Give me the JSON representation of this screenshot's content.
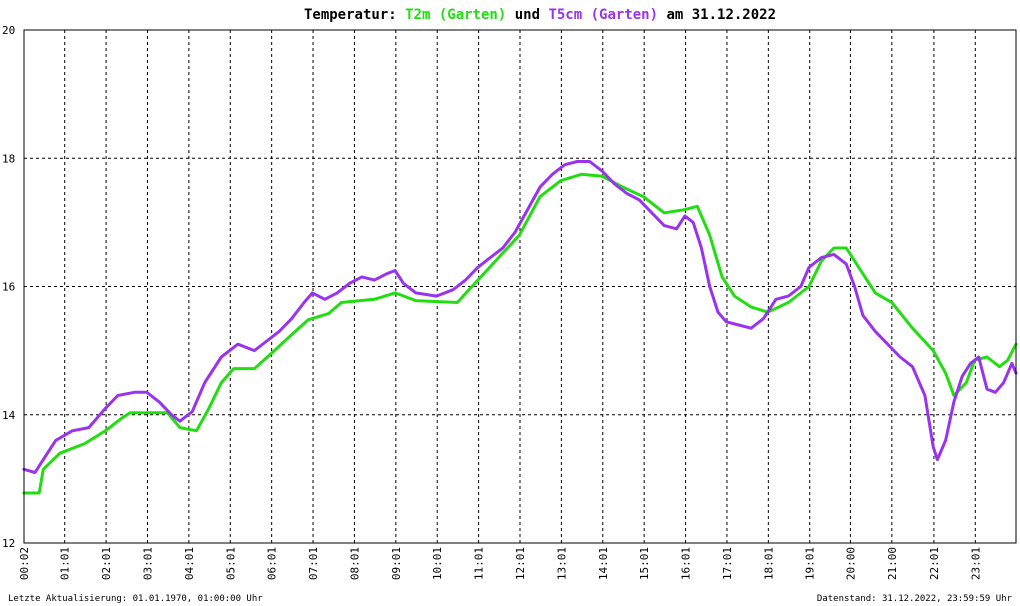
{
  "chart_data": {
    "type": "line",
    "title": {
      "prefix": "Temperatur: ",
      "series1": "T2m (Garten)",
      "middle": " und ",
      "series2": "T5cm (Garten)",
      "suffix": " am 31.12.2022"
    },
    "ylim": [
      12,
      20
    ],
    "yticks": [
      "12",
      "14",
      "16",
      "18",
      "20"
    ],
    "xlim": [
      0.0333,
      24
    ],
    "xticks": [
      {
        "t": 0.0333,
        "label": "00:02"
      },
      {
        "t": 1.0167,
        "label": "01:01"
      },
      {
        "t": 2.0167,
        "label": "02:01"
      },
      {
        "t": 3.0167,
        "label": "03:01"
      },
      {
        "t": 4.0167,
        "label": "04:01"
      },
      {
        "t": 5.0167,
        "label": "05:01"
      },
      {
        "t": 6.0167,
        "label": "06:01"
      },
      {
        "t": 7.0167,
        "label": "07:01"
      },
      {
        "t": 8.0167,
        "label": "08:01"
      },
      {
        "t": 9.0167,
        "label": "09:01"
      },
      {
        "t": 10.0167,
        "label": "10:01"
      },
      {
        "t": 11.0167,
        "label": "11:01"
      },
      {
        "t": 12.0167,
        "label": "12:01"
      },
      {
        "t": 13.0167,
        "label": "13:01"
      },
      {
        "t": 14.0167,
        "label": "14:01"
      },
      {
        "t": 15.0167,
        "label": "15:01"
      },
      {
        "t": 16.0167,
        "label": "16:01"
      },
      {
        "t": 17.0167,
        "label": "17:01"
      },
      {
        "t": 18.0167,
        "label": "18:01"
      },
      {
        "t": 19.0167,
        "label": "19:01"
      },
      {
        "t": 20.0,
        "label": "20:00"
      },
      {
        "t": 21.0,
        "label": "21:00"
      },
      {
        "t": 22.0167,
        "label": "22:01"
      },
      {
        "t": 23.0167,
        "label": "23:01"
      }
    ],
    "grid": true,
    "series": [
      {
        "name": "T2m (Garten)",
        "color": "#22dd11",
        "points": [
          [
            0.03,
            12.78
          ],
          [
            0.4,
            12.78
          ],
          [
            0.5,
            13.15
          ],
          [
            0.9,
            13.4
          ],
          [
            1.5,
            13.55
          ],
          [
            2.0,
            13.75
          ],
          [
            2.4,
            13.95
          ],
          [
            2.6,
            14.03
          ],
          [
            3.5,
            14.03
          ],
          [
            3.8,
            13.8
          ],
          [
            4.2,
            13.75
          ],
          [
            4.5,
            14.1
          ],
          [
            4.8,
            14.5
          ],
          [
            5.1,
            14.72
          ],
          [
            5.6,
            14.72
          ],
          [
            6.0,
            14.95
          ],
          [
            6.5,
            15.25
          ],
          [
            6.9,
            15.48
          ],
          [
            7.4,
            15.58
          ],
          [
            7.7,
            15.75
          ],
          [
            8.5,
            15.8
          ],
          [
            9.0,
            15.9
          ],
          [
            9.5,
            15.78
          ],
          [
            10.5,
            15.75
          ],
          [
            11.0,
            16.1
          ],
          [
            11.5,
            16.45
          ],
          [
            12.0,
            16.8
          ],
          [
            12.5,
            17.4
          ],
          [
            13.0,
            17.65
          ],
          [
            13.5,
            17.75
          ],
          [
            14.0,
            17.72
          ],
          [
            14.5,
            17.55
          ],
          [
            15.0,
            17.4
          ],
          [
            15.5,
            17.15
          ],
          [
            16.0,
            17.2
          ],
          [
            16.3,
            17.25
          ],
          [
            16.6,
            16.8
          ],
          [
            16.9,
            16.15
          ],
          [
            17.2,
            15.85
          ],
          [
            17.6,
            15.68
          ],
          [
            18.0,
            15.6
          ],
          [
            18.5,
            15.75
          ],
          [
            19.0,
            16.0
          ],
          [
            19.3,
            16.4
          ],
          [
            19.6,
            16.6
          ],
          [
            19.9,
            16.6
          ],
          [
            20.2,
            16.3
          ],
          [
            20.6,
            15.9
          ],
          [
            21.0,
            15.75
          ],
          [
            21.5,
            15.35
          ],
          [
            22.0,
            15.0
          ],
          [
            22.3,
            14.65
          ],
          [
            22.5,
            14.3
          ],
          [
            22.8,
            14.5
          ],
          [
            23.0,
            14.85
          ],
          [
            23.3,
            14.9
          ],
          [
            23.6,
            14.75
          ],
          [
            23.8,
            14.85
          ],
          [
            24.0,
            15.1
          ]
        ]
      },
      {
        "name": "T5cm (Garten)",
        "color": "#9933ee",
        "points": [
          [
            0.03,
            13.15
          ],
          [
            0.3,
            13.1
          ],
          [
            0.5,
            13.3
          ],
          [
            0.8,
            13.6
          ],
          [
            1.2,
            13.75
          ],
          [
            1.6,
            13.8
          ],
          [
            2.0,
            14.1
          ],
          [
            2.3,
            14.3
          ],
          [
            2.7,
            14.35
          ],
          [
            3.0,
            14.35
          ],
          [
            3.3,
            14.2
          ],
          [
            3.6,
            14.0
          ],
          [
            3.8,
            13.9
          ],
          [
            4.1,
            14.05
          ],
          [
            4.4,
            14.5
          ],
          [
            4.8,
            14.9
          ],
          [
            5.2,
            15.1
          ],
          [
            5.6,
            15.0
          ],
          [
            5.9,
            15.15
          ],
          [
            6.2,
            15.3
          ],
          [
            6.5,
            15.5
          ],
          [
            6.8,
            15.75
          ],
          [
            7.0,
            15.9
          ],
          [
            7.3,
            15.8
          ],
          [
            7.6,
            15.9
          ],
          [
            7.9,
            16.05
          ],
          [
            8.2,
            16.15
          ],
          [
            8.5,
            16.1
          ],
          [
            8.8,
            16.2
          ],
          [
            9.0,
            16.25
          ],
          [
            9.2,
            16.05
          ],
          [
            9.5,
            15.9
          ],
          [
            10.0,
            15.85
          ],
          [
            10.4,
            15.95
          ],
          [
            10.7,
            16.1
          ],
          [
            11.0,
            16.3
          ],
          [
            11.3,
            16.45
          ],
          [
            11.6,
            16.6
          ],
          [
            11.9,
            16.85
          ],
          [
            12.2,
            17.2
          ],
          [
            12.5,
            17.55
          ],
          [
            12.8,
            17.75
          ],
          [
            13.1,
            17.9
          ],
          [
            13.4,
            17.95
          ],
          [
            13.7,
            17.95
          ],
          [
            14.0,
            17.8
          ],
          [
            14.3,
            17.6
          ],
          [
            14.6,
            17.45
          ],
          [
            14.9,
            17.35
          ],
          [
            15.2,
            17.15
          ],
          [
            15.5,
            16.95
          ],
          [
            15.8,
            16.9
          ],
          [
            16.0,
            17.1
          ],
          [
            16.2,
            17.0
          ],
          [
            16.4,
            16.6
          ],
          [
            16.6,
            16.0
          ],
          [
            16.8,
            15.6
          ],
          [
            17.0,
            15.45
          ],
          [
            17.3,
            15.4
          ],
          [
            17.6,
            15.35
          ],
          [
            17.9,
            15.5
          ],
          [
            18.2,
            15.8
          ],
          [
            18.5,
            15.85
          ],
          [
            18.8,
            16.0
          ],
          [
            19.0,
            16.3
          ],
          [
            19.3,
            16.45
          ],
          [
            19.6,
            16.5
          ],
          [
            19.9,
            16.35
          ],
          [
            20.1,
            16.0
          ],
          [
            20.3,
            15.55
          ],
          [
            20.6,
            15.3
          ],
          [
            20.9,
            15.1
          ],
          [
            21.2,
            14.9
          ],
          [
            21.5,
            14.75
          ],
          [
            21.8,
            14.3
          ],
          [
            22.0,
            13.5
          ],
          [
            22.1,
            13.3
          ],
          [
            22.3,
            13.6
          ],
          [
            22.5,
            14.2
          ],
          [
            22.7,
            14.6
          ],
          [
            22.9,
            14.8
          ],
          [
            23.1,
            14.9
          ],
          [
            23.3,
            14.4
          ],
          [
            23.5,
            14.35
          ],
          [
            23.7,
            14.5
          ],
          [
            23.9,
            14.8
          ],
          [
            24.0,
            14.65
          ]
        ]
      }
    ]
  },
  "footer": {
    "left": "Letzte Aktualisierung: 01.01.1970, 01:00:00 Uhr",
    "right": "Datenstand: 31.12.2022, 23:59:59 Uhr"
  }
}
